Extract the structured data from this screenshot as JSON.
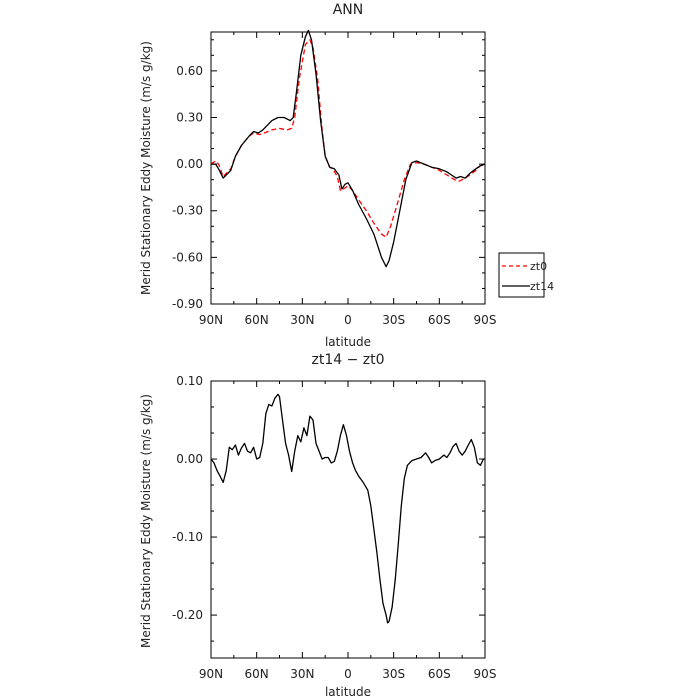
{
  "chart_data": [
    {
      "type": "line",
      "title": "ANN",
      "xlabel": "latitude",
      "ylabel": "Merid Stationary Eddy Moisture (m/s g/kg)",
      "x_ticks": [
        {
          "value": 90,
          "label": "90N"
        },
        {
          "value": 60,
          "label": "60N"
        },
        {
          "value": 30,
          "label": "30N"
        },
        {
          "value": 0,
          "label": "0"
        },
        {
          "value": -30,
          "label": "30S"
        },
        {
          "value": -60,
          "label": "60S"
        },
        {
          "value": -90,
          "label": "90S"
        }
      ],
      "xlim": [
        90,
        -90
      ],
      "y_ticks": [
        {
          "value": 0.6,
          "label": "0.60"
        },
        {
          "value": 0.3,
          "label": "0.30"
        },
        {
          "value": 0.0,
          "label": "0.00"
        },
        {
          "value": -0.3,
          "label": "-0.30"
        },
        {
          "value": -0.6,
          "label": "-0.60"
        },
        {
          "value": -0.9,
          "label": "-0.90"
        }
      ],
      "ylim": [
        -0.9,
        0.85
      ],
      "legend": "right",
      "series": [
        {
          "name": "zt0",
          "color": "#ff0000",
          "dashed": true,
          "points": [
            [
              90,
              0.0
            ],
            [
              87,
              0.02
            ],
            [
              85,
              0.0
            ],
            [
              82,
              -0.08
            ],
            [
              80,
              -0.06
            ],
            [
              77,
              -0.03
            ],
            [
              74,
              0.05
            ],
            [
              70,
              0.12
            ],
            [
              65,
              0.18
            ],
            [
              62,
              0.2
            ],
            [
              58,
              0.19
            ],
            [
              55,
              0.2
            ],
            [
              50,
              0.22
            ],
            [
              45,
              0.23
            ],
            [
              40,
              0.22
            ],
            [
              37,
              0.23
            ],
            [
              35,
              0.3
            ],
            [
              32,
              0.55
            ],
            [
              28,
              0.77
            ],
            [
              25,
              0.8
            ],
            [
              23,
              0.75
            ],
            [
              20,
              0.55
            ],
            [
              17,
              0.22
            ],
            [
              15,
              0.05
            ],
            [
              12,
              -0.02
            ],
            [
              10,
              -0.03
            ],
            [
              7,
              -0.08
            ],
            [
              5,
              -0.17
            ],
            [
              3,
              -0.16
            ],
            [
              0,
              -0.14
            ],
            [
              -3,
              -0.17
            ],
            [
              -7,
              -0.23
            ],
            [
              -12,
              -0.3
            ],
            [
              -17,
              -0.38
            ],
            [
              -22,
              -0.45
            ],
            [
              -25,
              -0.47
            ],
            [
              -28,
              -0.4
            ],
            [
              -32,
              -0.27
            ],
            [
              -37,
              -0.1
            ],
            [
              -41,
              0.0
            ],
            [
              -45,
              0.01
            ],
            [
              -50,
              0.0
            ],
            [
              -55,
              -0.02
            ],
            [
              -60,
              -0.04
            ],
            [
              -65,
              -0.07
            ],
            [
              -70,
              -0.1
            ],
            [
              -73,
              -0.11
            ],
            [
              -77,
              -0.09
            ],
            [
              -80,
              -0.07
            ],
            [
              -84,
              -0.04
            ],
            [
              -87,
              -0.01
            ],
            [
              -90,
              0.0
            ]
          ]
        },
        {
          "name": "zt14",
          "color": "#000000",
          "dashed": false,
          "points": [
            [
              90,
              0.0
            ],
            [
              87,
              0.0
            ],
            [
              85,
              -0.03
            ],
            [
              82,
              -0.09
            ],
            [
              80,
              -0.07
            ],
            [
              77,
              -0.04
            ],
            [
              74,
              0.05
            ],
            [
              70,
              0.12
            ],
            [
              65,
              0.18
            ],
            [
              62,
              0.21
            ],
            [
              59,
              0.2
            ],
            [
              56,
              0.22
            ],
            [
              53,
              0.25
            ],
            [
              50,
              0.28
            ],
            [
              46,
              0.3
            ],
            [
              42,
              0.3
            ],
            [
              38,
              0.28
            ],
            [
              36,
              0.3
            ],
            [
              34,
              0.45
            ],
            [
              31,
              0.7
            ],
            [
              28,
              0.82
            ],
            [
              26,
              0.86
            ],
            [
              24,
              0.8
            ],
            [
              21,
              0.58
            ],
            [
              18,
              0.28
            ],
            [
              15,
              0.05
            ],
            [
              12,
              -0.02
            ],
            [
              9,
              -0.03
            ],
            [
              6,
              -0.07
            ],
            [
              4,
              -0.16
            ],
            [
              2,
              -0.13
            ],
            [
              0,
              -0.12
            ],
            [
              -3,
              -0.17
            ],
            [
              -7,
              -0.26
            ],
            [
              -12,
              -0.35
            ],
            [
              -17,
              -0.45
            ],
            [
              -22,
              -0.6
            ],
            [
              -25,
              -0.66
            ],
            [
              -27,
              -0.62
            ],
            [
              -30,
              -0.5
            ],
            [
              -34,
              -0.3
            ],
            [
              -38,
              -0.1
            ],
            [
              -42,
              0.01
            ],
            [
              -45,
              0.02
            ],
            [
              -50,
              0.0
            ],
            [
              -55,
              -0.02
            ],
            [
              -60,
              -0.03
            ],
            [
              -65,
              -0.05
            ],
            [
              -68,
              -0.07
            ],
            [
              -71,
              -0.09
            ],
            [
              -74,
              -0.08
            ],
            [
              -77,
              -0.09
            ],
            [
              -80,
              -0.06
            ],
            [
              -84,
              -0.03
            ],
            [
              -87,
              -0.01
            ],
            [
              -90,
              0.0
            ]
          ]
        }
      ]
    },
    {
      "type": "line",
      "title": "zt14 − zt0",
      "xlabel": "latitude",
      "ylabel": "Merid Stationary Eddy Moisture (m/s g/kg)",
      "x_ticks": [
        {
          "value": 90,
          "label": "90N"
        },
        {
          "value": 60,
          "label": "60N"
        },
        {
          "value": 30,
          "label": "30N"
        },
        {
          "value": 0,
          "label": "0"
        },
        {
          "value": -30,
          "label": "30S"
        },
        {
          "value": -60,
          "label": "60S"
        },
        {
          "value": -90,
          "label": "90S"
        }
      ],
      "xlim": [
        90,
        -90
      ],
      "y_ticks": [
        {
          "value": 0.1,
          "label": "0.10"
        },
        {
          "value": 0.0,
          "label": "0.00"
        },
        {
          "value": -0.1,
          "label": "-0.10"
        },
        {
          "value": -0.2,
          "label": "-0.20"
        }
      ],
      "ylim": [
        -0.255,
        0.1
      ],
      "series": [
        {
          "color": "#000000",
          "dashed": false,
          "points": [
            [
              90,
              0.0
            ],
            [
              88,
              -0.005
            ],
            [
              86,
              -0.015
            ],
            [
              84,
              -0.022
            ],
            [
              82,
              -0.03
            ],
            [
              80,
              -0.015
            ],
            [
              78,
              0.015
            ],
            [
              76,
              0.012
            ],
            [
              74,
              0.018
            ],
            [
              72,
              0.005
            ],
            [
              70,
              0.014
            ],
            [
              68,
              0.02
            ],
            [
              66,
              0.01
            ],
            [
              64,
              0.008
            ],
            [
              62,
              0.015
            ],
            [
              60,
              0.0
            ],
            [
              58,
              0.002
            ],
            [
              56,
              0.02
            ],
            [
              54,
              0.058
            ],
            [
              52,
              0.07
            ],
            [
              50,
              0.068
            ],
            [
              48,
              0.078
            ],
            [
              46,
              0.083
            ],
            [
              45,
              0.08
            ],
            [
              43,
              0.05
            ],
            [
              41,
              0.02
            ],
            [
              39,
              0.005
            ],
            [
              37,
              -0.016
            ],
            [
              35,
              0.01
            ],
            [
              33,
              0.03
            ],
            [
              31,
              0.022
            ],
            [
              29,
              0.04
            ],
            [
              27,
              0.03
            ],
            [
              25,
              0.055
            ],
            [
              23,
              0.05
            ],
            [
              21,
              0.02
            ],
            [
              19,
              0.01
            ],
            [
              17,
              0.0
            ],
            [
              15,
              0.002
            ],
            [
              13,
              0.002
            ],
            [
              11,
              -0.005
            ],
            [
              9,
              -0.003
            ],
            [
              7,
              0.01
            ],
            [
              5,
              0.03
            ],
            [
              3,
              0.044
            ],
            [
              1,
              0.03
            ],
            [
              -1,
              0.01
            ],
            [
              -3,
              -0.005
            ],
            [
              -5,
              -0.015
            ],
            [
              -7,
              -0.022
            ],
            [
              -10,
              -0.03
            ],
            [
              -13,
              -0.04
            ],
            [
              -15,
              -0.06
            ],
            [
              -17,
              -0.09
            ],
            [
              -19,
              -0.12
            ],
            [
              -21,
              -0.155
            ],
            [
              -23,
              -0.185
            ],
            [
              -25,
              -0.2
            ],
            [
              -26,
              -0.21
            ],
            [
              -27,
              -0.208
            ],
            [
              -29,
              -0.19
            ],
            [
              -31,
              -0.155
            ],
            [
              -33,
              -0.11
            ],
            [
              -35,
              -0.06
            ],
            [
              -37,
              -0.025
            ],
            [
              -39,
              -0.008
            ],
            [
              -42,
              -0.002
            ],
            [
              -45,
              0.0
            ],
            [
              -48,
              0.002
            ],
            [
              -51,
              0.008
            ],
            [
              -53,
              0.002
            ],
            [
              -55,
              -0.005
            ],
            [
              -57,
              -0.002
            ],
            [
              -60,
              0.0
            ],
            [
              -63,
              0.005
            ],
            [
              -65,
              0.002
            ],
            [
              -67,
              0.008
            ],
            [
              -69,
              0.016
            ],
            [
              -71,
              0.02
            ],
            [
              -73,
              0.01
            ],
            [
              -75,
              0.005
            ],
            [
              -77,
              0.01
            ],
            [
              -79,
              0.018
            ],
            [
              -81,
              0.025
            ],
            [
              -83,
              0.015
            ],
            [
              -85,
              -0.005
            ],
            [
              -87,
              -0.008
            ],
            [
              -89,
              0.0
            ],
            [
              -90,
              0.0
            ]
          ]
        }
      ]
    }
  ]
}
